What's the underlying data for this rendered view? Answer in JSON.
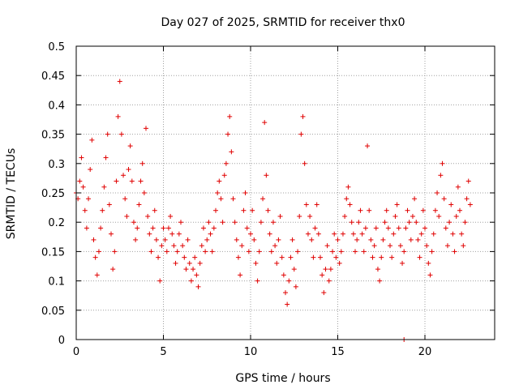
{
  "chart_data": {
    "type": "scatter",
    "title": "Day 027 of 2025, SRMTID for receiver thx0",
    "xlabel": "GPS time / hours",
    "ylabel": "SRMTID / TECUs",
    "xlim": [
      0,
      24
    ],
    "ylim": [
      0,
      0.5
    ],
    "x_ticks": [
      0,
      5,
      10,
      15,
      20
    ],
    "x_tick_labels": [
      "0",
      "5",
      "10",
      "15",
      "20"
    ],
    "y_ticks": [
      0,
      0.05,
      0.1,
      0.15,
      0.2,
      0.25,
      0.3,
      0.35,
      0.4,
      0.45,
      0.5
    ],
    "y_tick_labels": [
      "0",
      "0.05",
      "0.1",
      "0.15",
      "0.2",
      "0.25",
      "0.3",
      "0.35",
      "0.4",
      "0.45",
      "0.5"
    ],
    "grid": true,
    "marker": "plus",
    "marker_color": "#e00000",
    "grid_color": "#a0a0a0",
    "series": [
      {
        "values": [
          [
            0.0,
            0.25
          ],
          [
            0.1,
            0.24
          ],
          [
            0.2,
            0.27
          ],
          [
            0.3,
            0.31
          ],
          [
            0.4,
            0.26
          ],
          [
            0.5,
            0.22
          ],
          [
            0.6,
            0.19
          ],
          [
            0.7,
            0.24
          ],
          [
            0.8,
            0.29
          ],
          [
            0.9,
            0.34
          ],
          [
            1.0,
            0.17
          ],
          [
            1.1,
            0.14
          ],
          [
            1.2,
            0.11
          ],
          [
            1.3,
            0.15
          ],
          [
            1.4,
            0.19
          ],
          [
            1.5,
            0.22
          ],
          [
            1.6,
            0.26
          ],
          [
            1.7,
            0.31
          ],
          [
            1.8,
            0.35
          ],
          [
            1.9,
            0.23
          ],
          [
            2.0,
            0.18
          ],
          [
            2.1,
            0.12
          ],
          [
            2.2,
            0.15
          ],
          [
            2.3,
            0.27
          ],
          [
            2.4,
            0.38
          ],
          [
            2.5,
            0.44
          ],
          [
            2.6,
            0.35
          ],
          [
            2.7,
            0.28
          ],
          [
            2.8,
            0.24
          ],
          [
            2.9,
            0.21
          ],
          [
            3.0,
            0.29
          ],
          [
            3.1,
            0.33
          ],
          [
            3.2,
            0.27
          ],
          [
            3.3,
            0.2
          ],
          [
            3.4,
            0.17
          ],
          [
            3.5,
            0.19
          ],
          [
            3.6,
            0.23
          ],
          [
            3.7,
            0.27
          ],
          [
            3.8,
            0.3
          ],
          [
            3.9,
            0.25
          ],
          [
            4.0,
            0.36
          ],
          [
            4.1,
            0.21
          ],
          [
            4.2,
            0.18
          ],
          [
            4.3,
            0.15
          ],
          [
            4.4,
            0.19
          ],
          [
            4.5,
            0.22
          ],
          [
            4.6,
            0.17
          ],
          [
            4.7,
            0.14
          ],
          [
            4.8,
            0.1
          ],
          [
            4.9,
            0.16
          ],
          [
            5.0,
            0.19
          ],
          [
            5.1,
            0.17
          ],
          [
            5.2,
            0.15
          ],
          [
            5.3,
            0.19
          ],
          [
            5.4,
            0.21
          ],
          [
            5.5,
            0.18
          ],
          [
            5.6,
            0.16
          ],
          [
            5.7,
            0.13
          ],
          [
            5.8,
            0.15
          ],
          [
            5.9,
            0.18
          ],
          [
            6.0,
            0.2
          ],
          [
            6.1,
            0.16
          ],
          [
            6.2,
            0.14
          ],
          [
            6.3,
            0.12
          ],
          [
            6.4,
            0.17
          ],
          [
            6.5,
            0.13
          ],
          [
            6.6,
            0.1
          ],
          [
            6.7,
            0.12
          ],
          [
            6.8,
            0.14
          ],
          [
            6.9,
            0.11
          ],
          [
            7.0,
            0.09
          ],
          [
            7.1,
            0.13
          ],
          [
            7.2,
            0.16
          ],
          [
            7.3,
            0.19
          ],
          [
            7.4,
            0.15
          ],
          [
            7.5,
            0.17
          ],
          [
            7.6,
            0.2
          ],
          [
            7.7,
            0.18
          ],
          [
            7.8,
            0.15
          ],
          [
            7.9,
            0.19
          ],
          [
            8.0,
            0.22
          ],
          [
            8.1,
            0.25
          ],
          [
            8.2,
            0.27
          ],
          [
            8.3,
            0.24
          ],
          [
            8.4,
            0.2
          ],
          [
            8.5,
            0.28
          ],
          [
            8.6,
            0.3
          ],
          [
            8.7,
            0.35
          ],
          [
            8.8,
            0.38
          ],
          [
            8.9,
            0.32
          ],
          [
            9.0,
            0.24
          ],
          [
            9.1,
            0.2
          ],
          [
            9.2,
            0.17
          ],
          [
            9.3,
            0.14
          ],
          [
            9.4,
            0.11
          ],
          [
            9.5,
            0.16
          ],
          [
            9.6,
            0.22
          ],
          [
            9.7,
            0.25
          ],
          [
            9.8,
            0.19
          ],
          [
            9.9,
            0.15
          ],
          [
            10.0,
            0.18
          ],
          [
            10.1,
            0.22
          ],
          [
            10.2,
            0.17
          ],
          [
            10.3,
            0.13
          ],
          [
            10.4,
            0.1
          ],
          [
            10.5,
            0.15
          ],
          [
            10.6,
            0.2
          ],
          [
            10.7,
            0.24
          ],
          [
            10.8,
            0.37
          ],
          [
            10.9,
            0.28
          ],
          [
            11.0,
            0.22
          ],
          [
            11.1,
            0.18
          ],
          [
            11.2,
            0.15
          ],
          [
            11.3,
            0.2
          ],
          [
            11.4,
            0.16
          ],
          [
            11.5,
            0.13
          ],
          [
            11.6,
            0.17
          ],
          [
            11.7,
            0.21
          ],
          [
            11.8,
            0.14
          ],
          [
            11.9,
            0.11
          ],
          [
            12.0,
            0.08
          ],
          [
            12.1,
            0.06
          ],
          [
            12.2,
            0.1
          ],
          [
            12.3,
            0.14
          ],
          [
            12.4,
            0.17
          ],
          [
            12.5,
            0.12
          ],
          [
            12.6,
            0.09
          ],
          [
            12.7,
            0.15
          ],
          [
            12.8,
            0.21
          ],
          [
            12.9,
            0.35
          ],
          [
            13.0,
            0.38
          ],
          [
            13.1,
            0.3
          ],
          [
            13.2,
            0.23
          ],
          [
            13.3,
            0.18
          ],
          [
            13.4,
            0.21
          ],
          [
            13.5,
            0.17
          ],
          [
            13.6,
            0.14
          ],
          [
            13.7,
            0.19
          ],
          [
            13.8,
            0.23
          ],
          [
            13.9,
            0.18
          ],
          [
            14.0,
            0.14
          ],
          [
            14.1,
            0.11
          ],
          [
            14.2,
            0.08
          ],
          [
            14.3,
            0.12
          ],
          [
            14.4,
            0.16
          ],
          [
            14.5,
            0.1
          ],
          [
            14.6,
            0.12
          ],
          [
            14.7,
            0.15
          ],
          [
            14.8,
            0.18
          ],
          [
            14.9,
            0.14
          ],
          [
            15.0,
            0.17
          ],
          [
            15.1,
            0.13
          ],
          [
            15.2,
            0.15
          ],
          [
            15.3,
            0.18
          ],
          [
            15.4,
            0.21
          ],
          [
            15.5,
            0.24
          ],
          [
            15.6,
            0.26
          ],
          [
            15.7,
            0.23
          ],
          [
            15.8,
            0.2
          ],
          [
            15.9,
            0.18
          ],
          [
            16.0,
            0.15
          ],
          [
            16.1,
            0.17
          ],
          [
            16.2,
            0.2
          ],
          [
            16.3,
            0.22
          ],
          [
            16.4,
            0.18
          ],
          [
            16.5,
            0.15
          ],
          [
            16.6,
            0.19
          ],
          [
            16.7,
            0.33
          ],
          [
            16.8,
            0.22
          ],
          [
            16.9,
            0.17
          ],
          [
            17.0,
            0.14
          ],
          [
            17.1,
            0.16
          ],
          [
            17.2,
            0.19
          ],
          [
            17.3,
            0.12
          ],
          [
            17.4,
            0.1
          ],
          [
            17.5,
            0.14
          ],
          [
            17.6,
            0.17
          ],
          [
            17.7,
            0.2
          ],
          [
            17.8,
            0.22
          ],
          [
            17.9,
            0.19
          ],
          [
            18.0,
            0.16
          ],
          [
            18.1,
            0.14
          ],
          [
            18.2,
            0.18
          ],
          [
            18.3,
            0.21
          ],
          [
            18.4,
            0.23
          ],
          [
            18.5,
            0.19
          ],
          [
            18.6,
            0.16
          ],
          [
            18.7,
            0.13
          ],
          [
            18.8,
            0.15
          ],
          [
            18.9,
            0.19
          ],
          [
            19.0,
            0.22
          ],
          [
            19.1,
            0.2
          ],
          [
            19.2,
            0.17
          ],
          [
            19.3,
            0.21
          ],
          [
            19.4,
            0.24
          ],
          [
            19.5,
            0.2
          ],
          [
            19.6,
            0.17
          ],
          [
            19.7,
            0.14
          ],
          [
            19.8,
            0.18
          ],
          [
            19.9,
            0.22
          ],
          [
            20.0,
            0.19
          ],
          [
            20.1,
            0.16
          ],
          [
            20.2,
            0.13
          ],
          [
            20.3,
            0.11
          ],
          [
            20.4,
            0.15
          ],
          [
            20.5,
            0.18
          ],
          [
            20.6,
            0.22
          ],
          [
            20.7,
            0.25
          ],
          [
            20.8,
            0.21
          ],
          [
            20.9,
            0.28
          ],
          [
            21.0,
            0.3
          ],
          [
            21.1,
            0.24
          ],
          [
            21.2,
            0.19
          ],
          [
            21.3,
            0.16
          ],
          [
            21.4,
            0.2
          ],
          [
            21.5,
            0.23
          ],
          [
            21.6,
            0.18
          ],
          [
            21.7,
            0.15
          ],
          [
            21.8,
            0.21
          ],
          [
            21.9,
            0.26
          ],
          [
            22.0,
            0.22
          ],
          [
            22.1,
            0.18
          ],
          [
            22.2,
            0.16
          ],
          [
            22.3,
            0.2
          ],
          [
            22.4,
            0.24
          ],
          [
            22.5,
            0.27
          ],
          [
            22.6,
            0.23
          ],
          [
            18.8,
            0.0
          ]
        ]
      }
    ]
  }
}
